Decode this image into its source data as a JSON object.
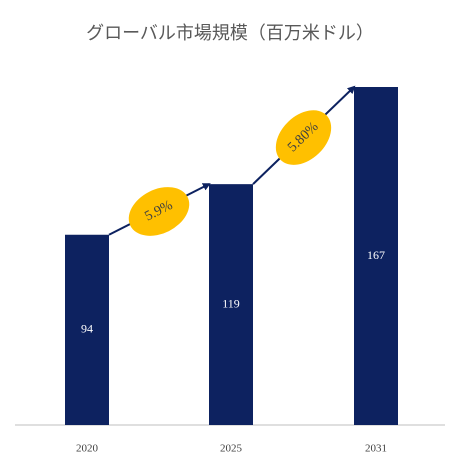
{
  "chart_data": {
    "type": "bar",
    "title": "グローバル市場規模（百万米ドル）",
    "categories": [
      "2020",
      "2025",
      "2031"
    ],
    "values": [
      94,
      119,
      167
    ],
    "color": "#0d2260",
    "annotations": [
      "5.9%",
      "5.80%"
    ],
    "annotation_color": "#ffc000"
  }
}
